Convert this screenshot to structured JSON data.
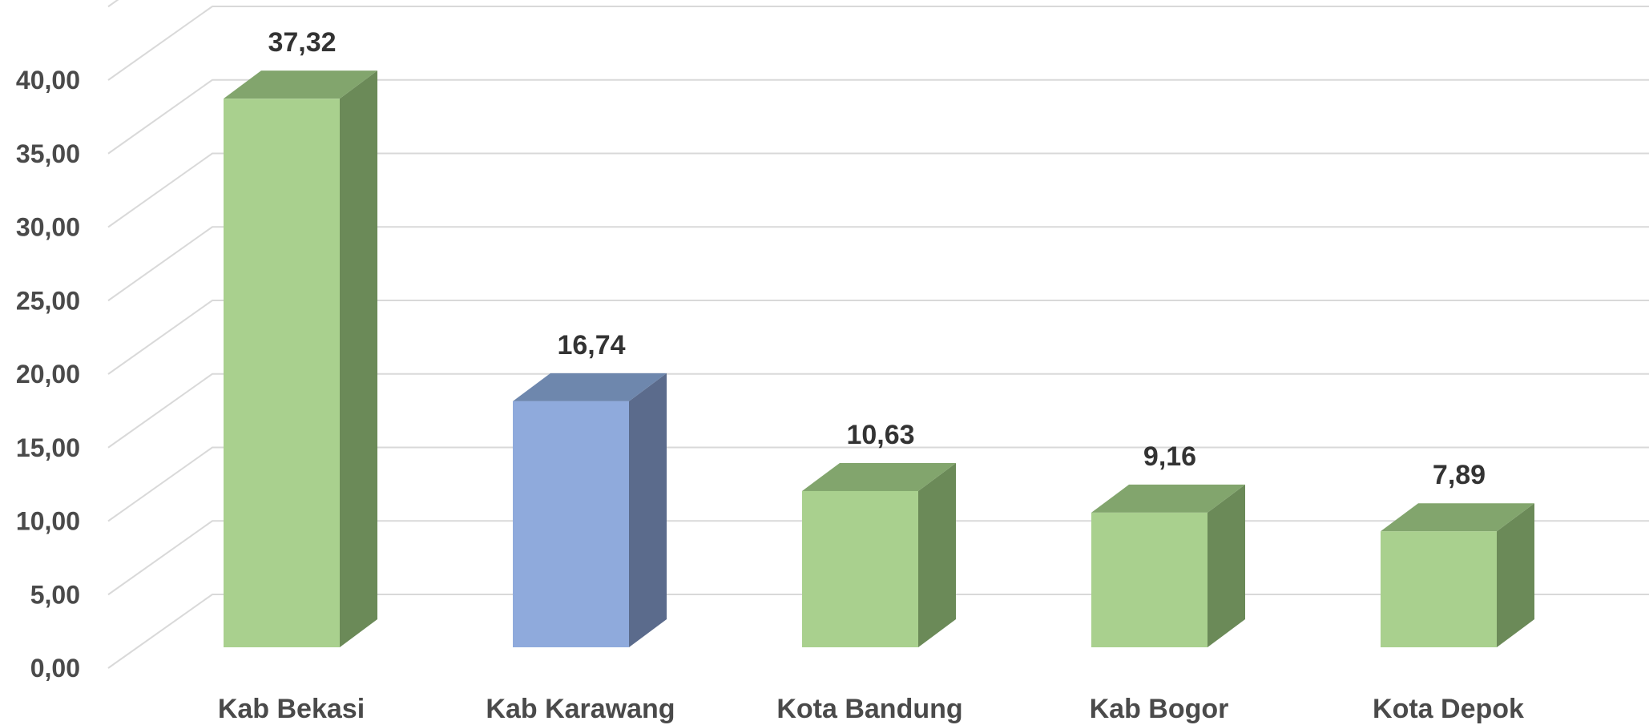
{
  "chart_data": {
    "type": "bar",
    "style": "3d-column",
    "categories": [
      "Kab Bekasi",
      "Kab Karawang",
      "Kota Bandung",
      "Kab Bogor",
      "Kota Depok"
    ],
    "values": [
      37.32,
      16.74,
      10.63,
      9.16,
      7.89
    ],
    "value_labels": [
      "37,32",
      "16,74",
      "10,63",
      "9,16",
      "7,89"
    ],
    "y_ticks": [
      "0,00",
      "5,00",
      "10,00",
      "15,00",
      "20,00",
      "25,00",
      "30,00",
      "35,00",
      "40,00"
    ],
    "ylim": [
      0,
      40
    ],
    "grid": true,
    "legend": "none",
    "title": "",
    "xlabel": "",
    "ylabel": "",
    "colors": {
      "default_front": "#a9d08e",
      "default_side": "#6b8a58",
      "default_top": "#82a56d",
      "highlight_front": "#8faadc",
      "highlight_side": "#5b6b8c",
      "highlight_top": "#6e87ad",
      "highlight_index": 1
    }
  }
}
